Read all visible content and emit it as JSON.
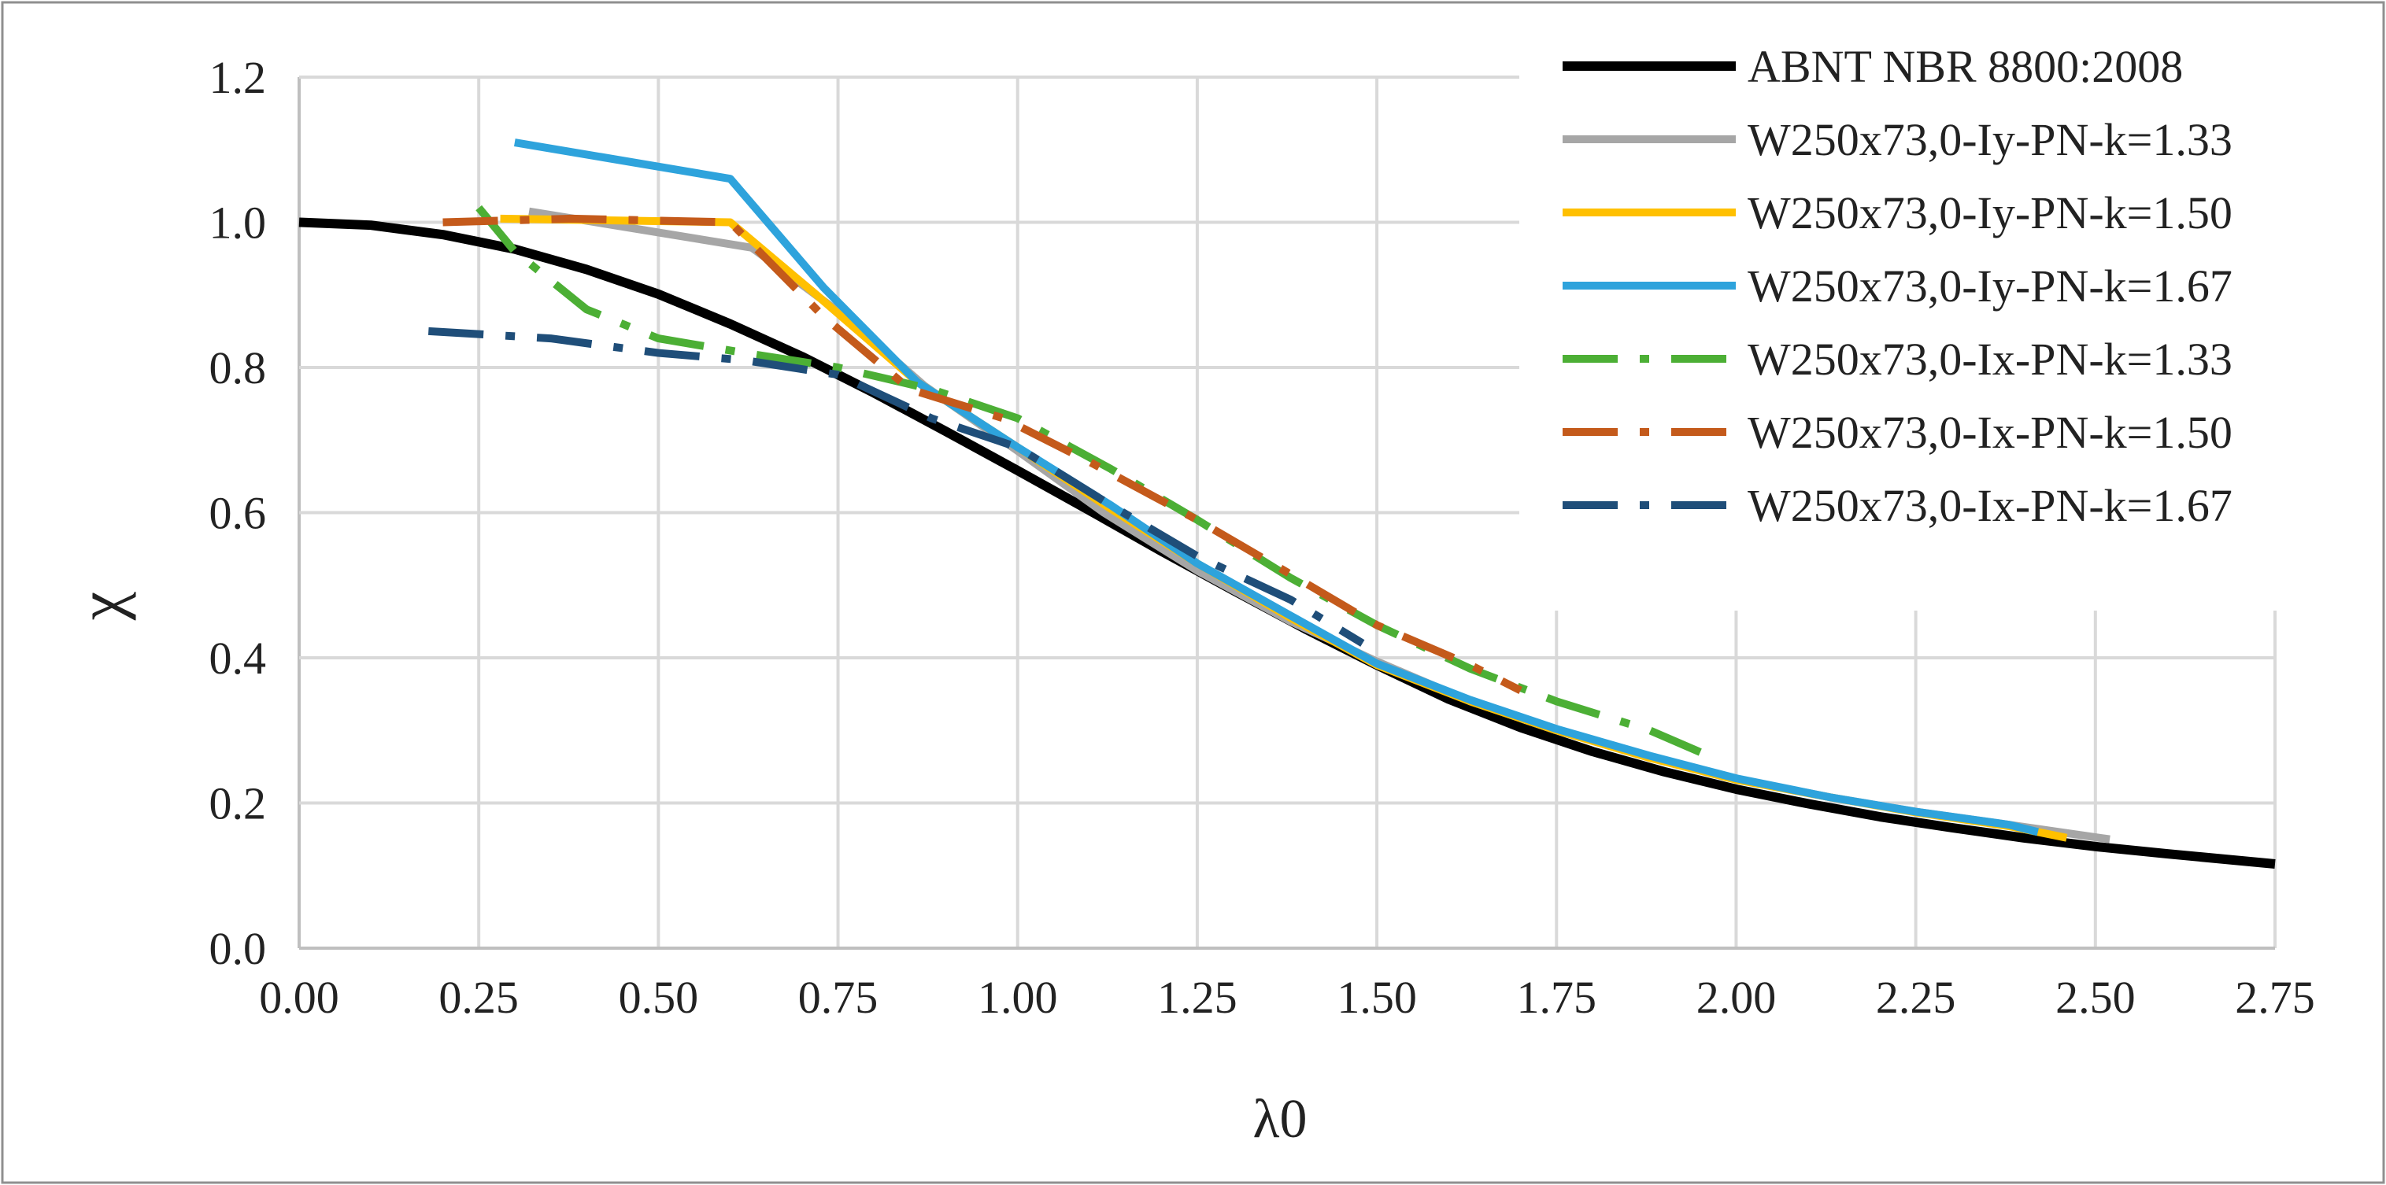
{
  "chart_data": {
    "type": "line",
    "title": "",
    "xlabel": "λ0",
    "ylabel": "χ",
    "xlim": [
      0,
      2.75
    ],
    "ylim": [
      0,
      1.2
    ],
    "grid": true,
    "legend_position": "top-right",
    "x_ticks": [
      "0.00",
      "0.25",
      "0.50",
      "0.75",
      "1.00",
      "1.25",
      "1.50",
      "1.75",
      "2.00",
      "2.25",
      "2.50",
      "2.75"
    ],
    "y_ticks": [
      "0.0",
      "0.2",
      "0.4",
      "0.6",
      "0.8",
      "1.0",
      "1.2"
    ],
    "series": [
      {
        "name": "ABNT NBR 8800:2008",
        "color": "#000000",
        "line_style": "solid",
        "points": [
          [
            0.0,
            1.0
          ],
          [
            0.1,
            0.996
          ],
          [
            0.2,
            0.983
          ],
          [
            0.3,
            0.963
          ],
          [
            0.4,
            0.935
          ],
          [
            0.5,
            0.901
          ],
          [
            0.6,
            0.86
          ],
          [
            0.7,
            0.815
          ],
          [
            0.8,
            0.765
          ],
          [
            0.9,
            0.712
          ],
          [
            1.0,
            0.658
          ],
          [
            1.1,
            0.603
          ],
          [
            1.2,
            0.547
          ],
          [
            1.3,
            0.493
          ],
          [
            1.4,
            0.44
          ],
          [
            1.5,
            0.39
          ],
          [
            1.6,
            0.343
          ],
          [
            1.7,
            0.304
          ],
          [
            1.8,
            0.271
          ],
          [
            1.9,
            0.243
          ],
          [
            2.0,
            0.219
          ],
          [
            2.1,
            0.199
          ],
          [
            2.2,
            0.181
          ],
          [
            2.3,
            0.166
          ],
          [
            2.4,
            0.152
          ],
          [
            2.5,
            0.14
          ],
          [
            2.6,
            0.13
          ],
          [
            2.75,
            0.116
          ]
        ]
      },
      {
        "name": "W250x73,0-Iy-PN-k=1.33",
        "color": "#a6a6a6",
        "line_style": "solid",
        "points": [
          [
            0.32,
            1.015
          ],
          [
            0.63,
            0.965
          ],
          [
            0.76,
            0.87
          ],
          [
            0.87,
            0.775
          ],
          [
            1.0,
            0.685
          ],
          [
            1.12,
            0.6
          ],
          [
            1.25,
            0.52
          ],
          [
            1.38,
            0.45
          ],
          [
            1.5,
            0.395
          ],
          [
            1.63,
            0.34
          ],
          [
            1.75,
            0.3
          ],
          [
            1.88,
            0.263
          ],
          [
            2.0,
            0.233
          ],
          [
            2.13,
            0.208
          ],
          [
            2.25,
            0.188
          ],
          [
            2.38,
            0.17
          ],
          [
            2.52,
            0.15
          ]
        ]
      },
      {
        "name": "W250x73,0-Iy-PN-k=1.50",
        "color": "#ffc000",
        "line_style": "solid",
        "points": [
          [
            0.28,
            1.005
          ],
          [
            0.6,
            1.0
          ],
          [
            0.72,
            0.9
          ],
          [
            0.86,
            0.78
          ],
          [
            1.0,
            0.69
          ],
          [
            1.13,
            0.605
          ],
          [
            1.25,
            0.53
          ],
          [
            1.38,
            0.455
          ],
          [
            1.5,
            0.39
          ],
          [
            1.63,
            0.34
          ],
          [
            1.75,
            0.3
          ],
          [
            1.88,
            0.262
          ],
          [
            2.0,
            0.232
          ],
          [
            2.13,
            0.208
          ],
          [
            2.25,
            0.187
          ],
          [
            2.38,
            0.168
          ],
          [
            2.46,
            0.152
          ]
        ]
      },
      {
        "name": "W250x73,0-Iy-PN-k=1.67",
        "color": "#2ea3dc",
        "line_style": "solid",
        "points": [
          [
            0.3,
            1.11
          ],
          [
            0.6,
            1.06
          ],
          [
            0.73,
            0.91
          ],
          [
            0.86,
            0.78
          ],
          [
            1.0,
            0.69
          ],
          [
            1.13,
            0.61
          ],
          [
            1.25,
            0.53
          ],
          [
            1.38,
            0.458
          ],
          [
            1.5,
            0.392
          ],
          [
            1.63,
            0.342
          ],
          [
            1.75,
            0.302
          ],
          [
            1.88,
            0.265
          ],
          [
            2.0,
            0.234
          ],
          [
            2.13,
            0.208
          ],
          [
            2.25,
            0.188
          ],
          [
            2.38,
            0.17
          ],
          [
            2.42,
            0.16
          ]
        ]
      },
      {
        "name": "W250x73,0-Ix-PN-k=1.33",
        "color": "#4caf35",
        "line_style": "dashdot",
        "points": [
          [
            0.25,
            1.02
          ],
          [
            0.3,
            0.96
          ],
          [
            0.4,
            0.88
          ],
          [
            0.5,
            0.84
          ],
          [
            0.62,
            0.82
          ],
          [
            0.75,
            0.8
          ],
          [
            0.88,
            0.77
          ],
          [
            1.0,
            0.73
          ],
          [
            1.13,
            0.66
          ],
          [
            1.25,
            0.59
          ],
          [
            1.38,
            0.51
          ],
          [
            1.5,
            0.445
          ],
          [
            1.63,
            0.385
          ],
          [
            1.75,
            0.34
          ],
          [
            1.88,
            0.3
          ],
          [
            1.95,
            0.27
          ]
        ]
      },
      {
        "name": "W250x73,0-Ix-PN-k=1.50",
        "color": "#c45a1b",
        "line_style": "dashdot",
        "points": [
          [
            0.2,
            1.0
          ],
          [
            0.38,
            1.005
          ],
          [
            0.6,
            1.0
          ],
          [
            0.73,
            0.87
          ],
          [
            0.85,
            0.77
          ],
          [
            0.98,
            0.73
          ],
          [
            1.1,
            0.67
          ],
          [
            1.25,
            0.59
          ],
          [
            1.38,
            0.515
          ],
          [
            1.5,
            0.445
          ],
          [
            1.63,
            0.39
          ],
          [
            1.7,
            0.355
          ]
        ]
      },
      {
        "name": "W250x73,0-Ix-PN-k=1.67",
        "color": "#1f4e79",
        "line_style": "dashdot",
        "points": [
          [
            0.18,
            0.85
          ],
          [
            0.35,
            0.84
          ],
          [
            0.5,
            0.82
          ],
          [
            0.62,
            0.81
          ],
          [
            0.75,
            0.79
          ],
          [
            0.88,
            0.73
          ],
          [
            1.0,
            0.69
          ],
          [
            1.13,
            0.61
          ],
          [
            1.25,
            0.54
          ],
          [
            1.38,
            0.48
          ],
          [
            1.48,
            0.42
          ]
        ]
      }
    ]
  }
}
